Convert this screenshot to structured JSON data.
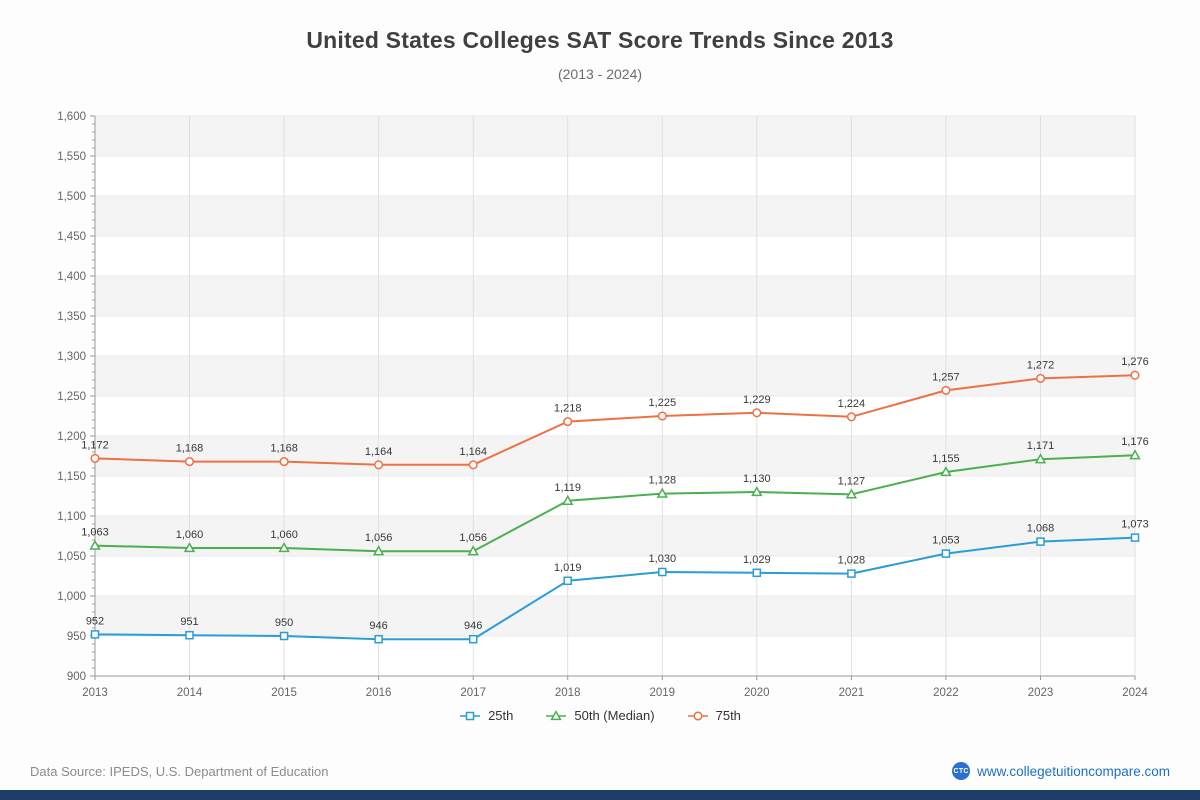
{
  "chart_data": {
    "type": "line",
    "title": "United States Colleges SAT Score Trends Since 2013",
    "subtitle": "(2013 - 2024)",
    "categories": [
      "2013",
      "2014",
      "2015",
      "2016",
      "2017",
      "2018",
      "2019",
      "2020",
      "2021",
      "2022",
      "2023",
      "2024"
    ],
    "series": [
      {
        "name": "25th",
        "marker": "square",
        "color": "#2a9dd6",
        "values": [
          952,
          951,
          950,
          946,
          946,
          1019,
          1030,
          1029,
          1028,
          1053,
          1068,
          1073
        ]
      },
      {
        "name": "50th (Median)",
        "marker": "triangle",
        "color": "#4caf50",
        "values": [
          1063,
          1060,
          1060,
          1056,
          1056,
          1119,
          1128,
          1130,
          1127,
          1155,
          1171,
          1176
        ]
      },
      {
        "name": "75th",
        "marker": "circle",
        "color": "#ee7144",
        "values": [
          1172,
          1168,
          1168,
          1164,
          1164,
          1218,
          1225,
          1229,
          1224,
          1257,
          1272,
          1276
        ]
      }
    ],
    "ylim": [
      900,
      1600
    ],
    "ytick_step": 50,
    "grid": true,
    "value_labels": true,
    "legend_position": "bottom",
    "band_fill": [
      "#f4f4f4",
      "#ffffff"
    ]
  },
  "footer": {
    "data_source": "Data Source: IPEDS, U.S. Department of Education",
    "logo_text": "CTC",
    "site_label": "www.collegetuitioncompare.com"
  },
  "colors": {
    "link_blue": "#1a6fc9",
    "logo_blue": "#2e6fd0",
    "bottom_bar_navy": "#1d3c68"
  }
}
